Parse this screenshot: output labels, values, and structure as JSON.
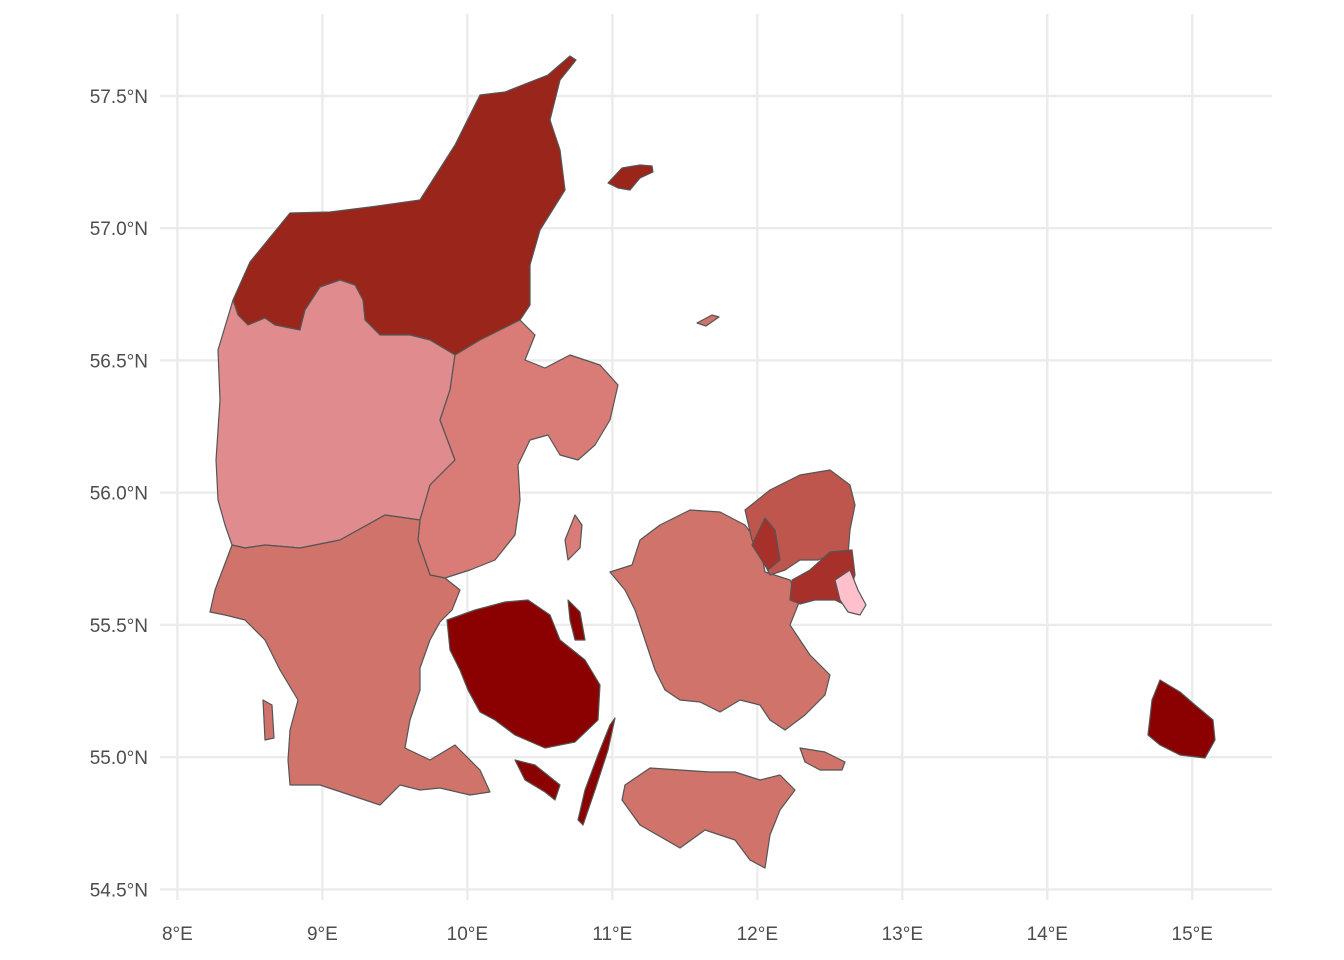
{
  "chart_data": {
    "type": "map",
    "title": "",
    "xlabel": "",
    "ylabel": "",
    "x_range": [
      7.88,
      15.55
    ],
    "y_range": [
      54.46,
      57.81
    ],
    "x_ticks": [
      "8°E",
      "9°E",
      "10°E",
      "11°E",
      "12°E",
      "13°E",
      "14°E",
      "15°E"
    ],
    "x_tick_values": [
      8,
      9,
      10,
      11,
      12,
      13,
      14,
      15
    ],
    "y_ticks": [
      "54.5°N",
      "55.0°N",
      "55.5°N",
      "56.0°N",
      "56.5°N",
      "57.0°N",
      "57.5°N"
    ],
    "y_tick_values": [
      54.5,
      55.0,
      55.5,
      56.0,
      56.5,
      57.0,
      57.5
    ],
    "grid": true,
    "legend": "none",
    "regions": [
      {
        "id": "north-jutland",
        "color": "#9a261b"
      },
      {
        "id": "mid-jutland-west",
        "color": "#e08b8e"
      },
      {
        "id": "mid-jutland-east",
        "color": "#d97b76"
      },
      {
        "id": "south-jutland",
        "color": "#d0736b"
      },
      {
        "id": "funen",
        "color": "#8b0000"
      },
      {
        "id": "zealand",
        "color": "#d0736b"
      },
      {
        "id": "north-zealand",
        "color": "#bf564d"
      },
      {
        "id": "copenhagen-suburbs",
        "color": "#a8302a"
      },
      {
        "id": "copenhagen-city",
        "color": "#ffc0cb"
      },
      {
        "id": "bornholm",
        "color": "#8b0000"
      }
    ]
  }
}
